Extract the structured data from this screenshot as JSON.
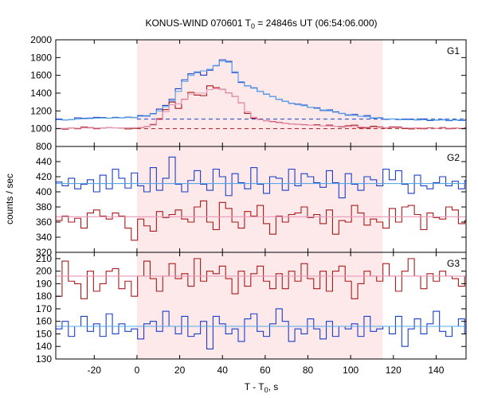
{
  "chart_data": {
    "type": "line",
    "title": {
      "prefix": "KONUS-WIND 070601 T",
      "sub": "0",
      "suffix": " = 24846s UT (06:54:06.000)"
    },
    "xlabel": {
      "prefix": "T - T",
      "sub": "0",
      "suffix": ", s"
    },
    "ylabel": "counts / sec",
    "xlim": [
      -38,
      154
    ],
    "xticks": [
      -20,
      0,
      20,
      40,
      60,
      80,
      100,
      120,
      140
    ],
    "highlight_interval": [
      0,
      115
    ],
    "highlight_color": "#fde8ea",
    "panels": [
      {
        "label": "G1",
        "ylim": [
          800,
          2000
        ],
        "yticks": [
          800,
          1000,
          1200,
          1400,
          1600,
          1800,
          2000
        ],
        "x_start": -38,
        "bin_width": 2.944,
        "series": [
          {
            "color": "#1a3fc8",
            "values": [
              1108,
              1098,
              1102,
              1122,
              1118,
              1120,
              1128,
              1125,
              1118,
              1128,
              1122,
              1130,
              1125,
              1148,
              1142,
              1170,
              1220,
              1262,
              1330,
              1450,
              1550,
              1618,
              1632,
              1602,
              1658,
              1708,
              1775,
              1758,
              1630,
              1520,
              1482,
              1460,
              1420,
              1388,
              1362,
              1330,
              1308,
              1285,
              1275,
              1265,
              1240,
              1235,
              1205,
              1212,
              1190,
              1172,
              1152,
              1160,
              1140,
              1148,
              1118,
              1122,
              1105,
              1110,
              1102,
              1108,
              1105,
              1098,
              1110,
              1092,
              1096,
              1102,
              1090,
              1098,
              1092,
              1102,
              1094
            ]
          },
          {
            "color": "#5aa8e8",
            "values": [
              1100,
              1100,
              1102,
              1108,
              1112,
              1114,
              1118,
              1120,
              1120,
              1122,
              1124,
              1125,
              1128,
              1140,
              1148,
              1165,
              1200,
              1248,
              1312,
              1420,
              1530,
              1600,
              1640,
              1650,
              1668,
              1712,
              1760,
              1748,
              1640,
              1528,
              1484,
              1455,
              1420,
              1390,
              1360,
              1332,
              1308,
              1288,
              1270,
              1258,
              1240,
              1228,
              1210,
              1200,
              1185,
              1170,
              1158,
              1150,
              1140,
              1134,
              1122,
              1118,
              1110,
              1108,
              1104,
              1102,
              1100,
              1100,
              1100,
              1098,
              1098,
              1098,
              1096,
              1096,
              1096,
              1096,
              1096
            ]
          },
          {
            "color": "#aa1a1a",
            "values": [
              1002,
              995,
              1008,
              1000,
              1018,
              1012,
              1000,
              1008,
              1012,
              1010,
              1008,
              998,
              1004,
              1012,
              1022,
              1048,
              1112,
              1215,
              1300,
              1228,
              1332,
              1408,
              1378,
              1372,
              1482,
              1462,
              1442,
              1402,
              1362,
              1290,
              1172,
              1118,
              1102,
              1088,
              1080,
              1070,
              1060,
              1052,
              1048,
              1046,
              1038,
              1044,
              1032,
              1040,
              1028,
              1020,
              1034,
              1040,
              1012,
              1008,
              1028,
              1020,
              1006,
              1020,
              1018,
              1002,
              998,
              1008,
              1000,
              1010,
              1004,
              1012,
              1000,
              1008,
              1002,
              1012,
              1004
            ]
          },
          {
            "color": "#e898b8",
            "values": [
              1004,
              1004,
              1005,
              1006,
              1008,
              1008,
              1008,
              1009,
              1010,
              1010,
              1010,
              1010,
              1011,
              1014,
              1020,
              1040,
              1100,
              1190,
              1270,
              1280,
              1330,
              1390,
              1400,
              1400,
              1440,
              1450,
              1440,
              1400,
              1360,
              1290,
              1190,
              1130,
              1100,
              1086,
              1076,
              1066,
              1058,
              1052,
              1046,
              1042,
              1038,
              1036,
              1032,
              1030,
              1028,
              1026,
              1024,
              1022,
              1020,
              1018,
              1016,
              1014,
              1012,
              1012,
              1010,
              1010,
              1008,
              1008,
              1008,
              1006,
              1006,
              1006,
              1006,
              1006,
              1006,
              1006,
              1006
            ]
          }
        ],
        "baselines": [
          {
            "value": 1108,
            "color": "#1a3fc8",
            "dashed": true
          },
          {
            "value": 1000,
            "color": "#aa1a1a",
            "dashed": true
          }
        ]
      },
      {
        "label": "G2",
        "ylim": [
          320,
          460
        ],
        "yticks": [
          320,
          340,
          360,
          380,
          400,
          420,
          440
        ],
        "x_start": -38,
        "bin_width": 2.944,
        "series": [
          {
            "color": "#1a3fc8",
            "values": [
              413,
              408,
              418,
              404,
              410,
              416,
              400,
              422,
              404,
              430,
              418,
              405,
              425,
              408,
              400,
              432,
              402,
              418,
              446,
              410,
              400,
              415,
              428,
              410,
              402,
              430,
              420,
              395,
              424,
              412,
              404,
              432,
              410,
              398,
              420,
              418,
              402,
              430,
              408,
              424,
              420,
              412,
              406,
              428,
              412,
              392,
              424,
              410,
              402,
              420,
              416,
              408,
              430,
              416,
              428,
              410,
              398,
              422,
              408,
              404,
              412,
              420,
              408,
              414,
              404,
              415,
              412
            ]
          },
          {
            "color": "#aa1a1a",
            "values": [
              362,
              368,
              360,
              365,
              352,
              372,
              376,
              368,
              364,
              372,
              368,
              352,
              336,
              364,
              355,
              348,
              374,
              366,
              370,
              376,
              364,
              360,
              380,
              388,
              360,
              350,
              386,
              378,
              360,
              352,
              374,
              368,
              382,
              358,
              344,
              368,
              360,
              370,
              372,
              380,
              366,
              370,
              358,
              376,
              344,
              362,
              360,
              382,
              372,
              356,
              364,
              360,
              352,
              378,
              360,
              380,
              382,
              370,
              350,
              372,
              366,
              364,
              380,
              376,
              358,
              362,
              364
            ]
          },
          {
            "color": "#5aa8e8",
            "values": [
              411
            ]
          },
          {
            "color": "#e898b8",
            "values": [
              367
            ]
          }
        ],
        "baselines": []
      },
      {
        "label": "G3",
        "ylim": [
          130,
          215
        ],
        "yticks": [
          130,
          140,
          150,
          160,
          170,
          180,
          190,
          200,
          210
        ],
        "x_start": -38,
        "bin_width": 2.944,
        "series": [
          {
            "color": "#1a3fc8",
            "values": [
              154,
              160,
              148,
              156,
              164,
              152,
              158,
              148,
              166,
              150,
              158,
              152,
              154,
              146,
              158,
              160,
              152,
              168,
              156,
              150,
              164,
              148,
              150,
              160,
              138,
              164,
              158,
              150,
              154,
              144,
              162,
              166,
              152,
              148,
              158,
              170,
              160,
              144,
              154,
              150,
              162,
              154,
              146,
              160,
              148,
              156,
              154,
              158,
              148,
              164,
              152,
              154,
              156,
              150,
              164,
              140,
              154,
              162,
              150,
              158,
              168,
              152,
              148,
              156,
              162,
              150,
              170
            ]
          },
          {
            "color": "#aa1a1a",
            "values": [
              180,
              208,
              192,
              190,
              178,
              200,
              184,
              190,
              200,
              202,
              186,
              192,
              180,
              196,
              208,
              194,
              184,
              196,
              206,
              194,
              198,
              188,
              210,
              192,
              200,
              198,
              204,
              194,
              182,
              200,
              188,
              198,
              204,
              192,
              186,
              198,
              186,
              200,
              192,
              206,
              194,
              186,
              200,
              184,
              200,
              204,
              192,
              178,
              190,
              200,
              196,
              192,
              206,
              196,
              184,
              200,
              210,
              196,
              186,
              198,
              192,
              200,
              196,
              194,
              188,
              196,
              198
            ]
          },
          {
            "color": "#5aa8e8",
            "values": [
              156
            ]
          },
          {
            "color": "#e898b8",
            "values": [
              196
            ]
          }
        ],
        "baselines": []
      }
    ]
  }
}
